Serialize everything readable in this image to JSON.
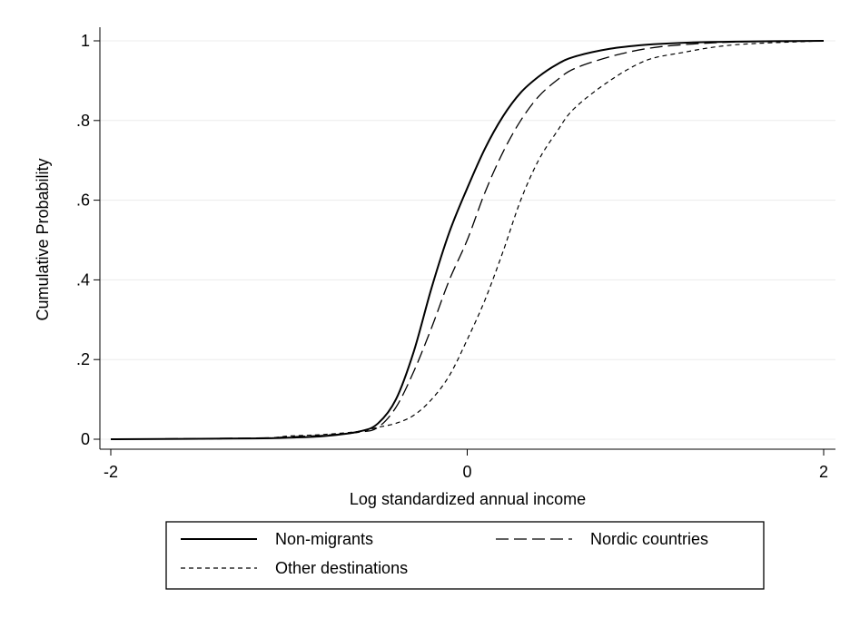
{
  "chart_data": {
    "type": "line",
    "title": "",
    "xlabel": "Log standardized annual income",
    "ylabel": "Cumulative Probability",
    "xlim": [
      -2,
      2
    ],
    "ylim": [
      0,
      1
    ],
    "x_ticks": [
      -2,
      0,
      2
    ],
    "x_tick_labels": [
      "-2",
      "0",
      "2"
    ],
    "y_ticks": [
      0,
      0.2,
      0.4,
      0.6,
      0.8,
      1
    ],
    "y_tick_labels": [
      "0",
      ".2",
      ".4",
      ".6",
      ".8",
      "1"
    ],
    "grid": "horizontal",
    "legend_position": "bottom",
    "series": [
      {
        "name": "Non-migrants",
        "style": "solid",
        "x": [
          -2.0,
          -1.2,
          -1.0,
          -0.8,
          -0.6,
          -0.5,
          -0.4,
          -0.3,
          -0.2,
          -0.1,
          0.0,
          0.1,
          0.2,
          0.3,
          0.4,
          0.5,
          0.6,
          0.8,
          1.0,
          1.2,
          1.5,
          2.0
        ],
        "y": [
          0.0,
          0.002,
          0.004,
          0.008,
          0.02,
          0.04,
          0.1,
          0.22,
          0.38,
          0.52,
          0.63,
          0.73,
          0.81,
          0.87,
          0.91,
          0.94,
          0.96,
          0.98,
          0.99,
          0.995,
          0.998,
          1.0
        ]
      },
      {
        "name": "Nordic countries",
        "style": "longdash",
        "x": [
          -2.0,
          -1.2,
          -1.0,
          -0.8,
          -0.6,
          -0.5,
          -0.4,
          -0.3,
          -0.2,
          -0.1,
          0.0,
          0.1,
          0.2,
          0.3,
          0.4,
          0.5,
          0.6,
          0.8,
          1.0,
          1.2,
          1.5,
          2.0
        ],
        "y": [
          0.0,
          0.003,
          0.006,
          0.01,
          0.018,
          0.03,
          0.08,
          0.17,
          0.28,
          0.4,
          0.5,
          0.62,
          0.72,
          0.8,
          0.86,
          0.9,
          0.93,
          0.96,
          0.98,
          0.99,
          0.997,
          1.0
        ]
      },
      {
        "name": "Other destinations",
        "style": "shortdash",
        "x": [
          -2.0,
          -1.2,
          -1.0,
          -0.8,
          -0.6,
          -0.5,
          -0.4,
          -0.3,
          -0.2,
          -0.1,
          0.0,
          0.1,
          0.2,
          0.3,
          0.4,
          0.5,
          0.6,
          0.8,
          1.0,
          1.2,
          1.5,
          2.0
        ],
        "y": [
          0.0,
          0.002,
          0.008,
          0.012,
          0.02,
          0.03,
          0.04,
          0.06,
          0.1,
          0.16,
          0.25,
          0.35,
          0.47,
          0.6,
          0.7,
          0.77,
          0.83,
          0.9,
          0.95,
          0.97,
          0.99,
          1.0
        ]
      }
    ]
  }
}
